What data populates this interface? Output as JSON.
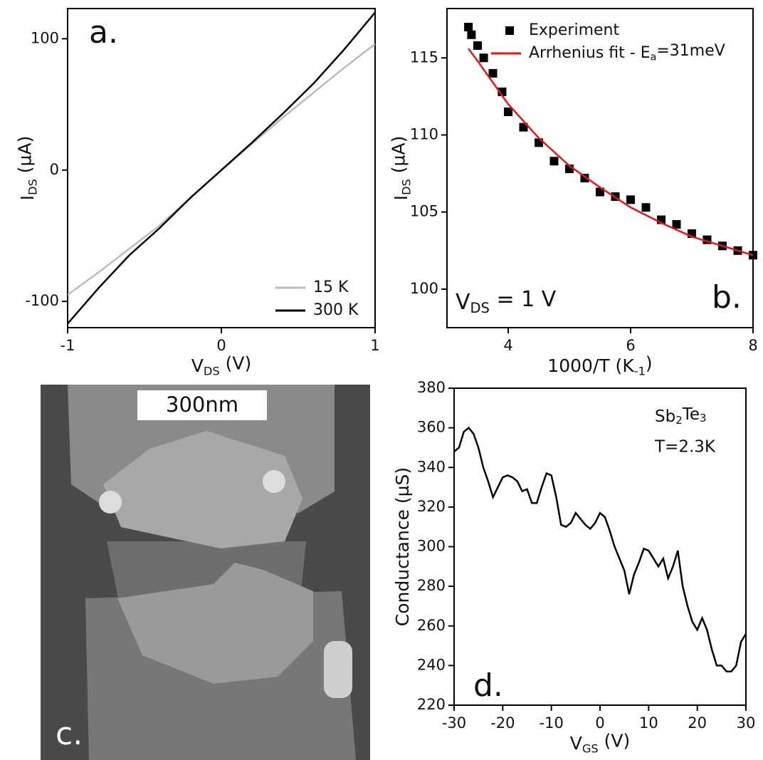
{
  "chart_data": [
    {
      "type": "line",
      "panel_label": "a.",
      "xlabel": [
        "V",
        "DS",
        " (V)"
      ],
      "ylabel": [
        "I",
        "DS",
        " (µA)"
      ],
      "x": [
        -1,
        -0.8,
        -0.6,
        -0.4,
        -0.2,
        0,
        0.2,
        0.4,
        0.6,
        0.8,
        1
      ],
      "series": [
        {
          "name": "15 K",
          "color": "#bbbbbb",
          "values": [
            -95,
            -78,
            -60,
            -42,
            -21,
            0,
            20,
            40,
            59,
            78,
            96
          ]
        },
        {
          "name": "300 K",
          "color": "#000000",
          "values": [
            -117,
            -90,
            -65,
            -44,
            -21,
            0,
            21,
            43,
            66,
            92,
            120
          ]
        }
      ],
      "xlim": [
        -1,
        1
      ],
      "ylim": [
        -120,
        123
      ],
      "xticks": [
        -1,
        0,
        1
      ],
      "yticks": [
        -100,
        0,
        100
      ],
      "legend": "lower right"
    },
    {
      "type": "line",
      "panel_label": "b.",
      "xlabel": [
        "1000/T (K",
        "-1",
        ")"
      ],
      "ylabel": [
        "I",
        "DS",
        " (µA)"
      ],
      "annotations": [
        [
          "V",
          "DS",
          " = 1 V"
        ]
      ],
      "series": [
        {
          "name": "Experiment",
          "color": "#000000",
          "marker": "square",
          "x": [
            3.35,
            3.4,
            3.5,
            3.6,
            3.75,
            3.9,
            4.0,
            4.25,
            4.5,
            4.75,
            5.0,
            5.25,
            5.5,
            5.75,
            6.0,
            6.25,
            6.5,
            6.75,
            7.0,
            7.25,
            7.5,
            7.75,
            8.0
          ],
          "values": [
            117,
            116.5,
            115.8,
            115,
            114,
            112.8,
            111.5,
            110.5,
            109.5,
            108.3,
            107.8,
            107.2,
            106.3,
            106,
            105.8,
            105.3,
            104.5,
            104.2,
            103.6,
            103.2,
            102.8,
            102.5,
            102.2
          ]
        },
        {
          "name": [
            "Arrhenius fit - E",
            "a",
            "=31meV"
          ],
          "color": "#e8141c",
          "marker": "line",
          "x": [
            3.35,
            3.5,
            4,
            4.5,
            5,
            5.5,
            6,
            6.5,
            7,
            7.5,
            8
          ],
          "values": [
            115.6,
            114.8,
            112,
            109.8,
            108,
            106.6,
            105.3,
            104.3,
            103.4,
            102.8,
            102.2
          ]
        }
      ],
      "xlim": [
        3,
        8
      ],
      "ylim": [
        97.5,
        118.2
      ],
      "xticks": [
        4,
        6,
        8
      ],
      "yticks": [
        100,
        105,
        110,
        115
      ],
      "legend": "upper right"
    },
    {
      "type": "line",
      "panel_label": "d.",
      "xlabel": [
        "V",
        "GS",
        " (V)"
      ],
      "ylabel": "Conductance (µS)",
      "annotations": [
        [
          "Sb",
          "2",
          "Te",
          "3"
        ],
        "T=2.3K"
      ],
      "x": [
        -30,
        -29,
        -28,
        -27,
        -26,
        -25,
        -24,
        -23,
        -22,
        -21,
        -20,
        -19,
        -18,
        -17,
        -16,
        -15,
        -14,
        -13,
        -12,
        -11,
        -10,
        -9,
        -8,
        -7,
        -6,
        -5,
        -4,
        -3,
        -2,
        -1,
        0,
        1,
        2,
        3,
        4,
        5,
        6,
        7,
        8,
        9,
        10,
        11,
        12,
        13,
        14,
        15,
        16,
        17,
        18,
        19,
        20,
        21,
        22,
        23,
        24,
        25,
        26,
        27,
        28,
        29,
        30
      ],
      "series": [
        {
          "color": "#000000",
          "values": [
            348,
            350,
            358,
            360,
            357,
            350,
            340,
            333,
            325,
            330,
            335,
            336,
            335,
            333,
            328,
            329,
            322,
            322,
            330,
            337,
            336,
            325,
            311,
            310,
            312,
            317,
            314,
            311,
            309,
            312,
            317,
            315,
            308,
            300,
            294,
            288,
            276,
            286,
            292,
            299,
            298,
            294,
            290,
            294,
            284,
            290,
            298,
            280,
            270,
            262,
            258,
            264,
            258,
            248,
            240,
            240,
            237,
            237,
            240,
            252,
            256
          ]
        }
      ],
      "xlim": [
        -30,
        30
      ],
      "ylim": [
        220,
        380
      ],
      "xticks": [
        -30,
        -20,
        -10,
        0,
        10,
        20,
        30
      ],
      "yticks": [
        220,
        240,
        260,
        280,
        300,
        320,
        340,
        360,
        380
      ]
    }
  ],
  "image_panel": {
    "label": "c.",
    "scale_bar": "300nm"
  }
}
